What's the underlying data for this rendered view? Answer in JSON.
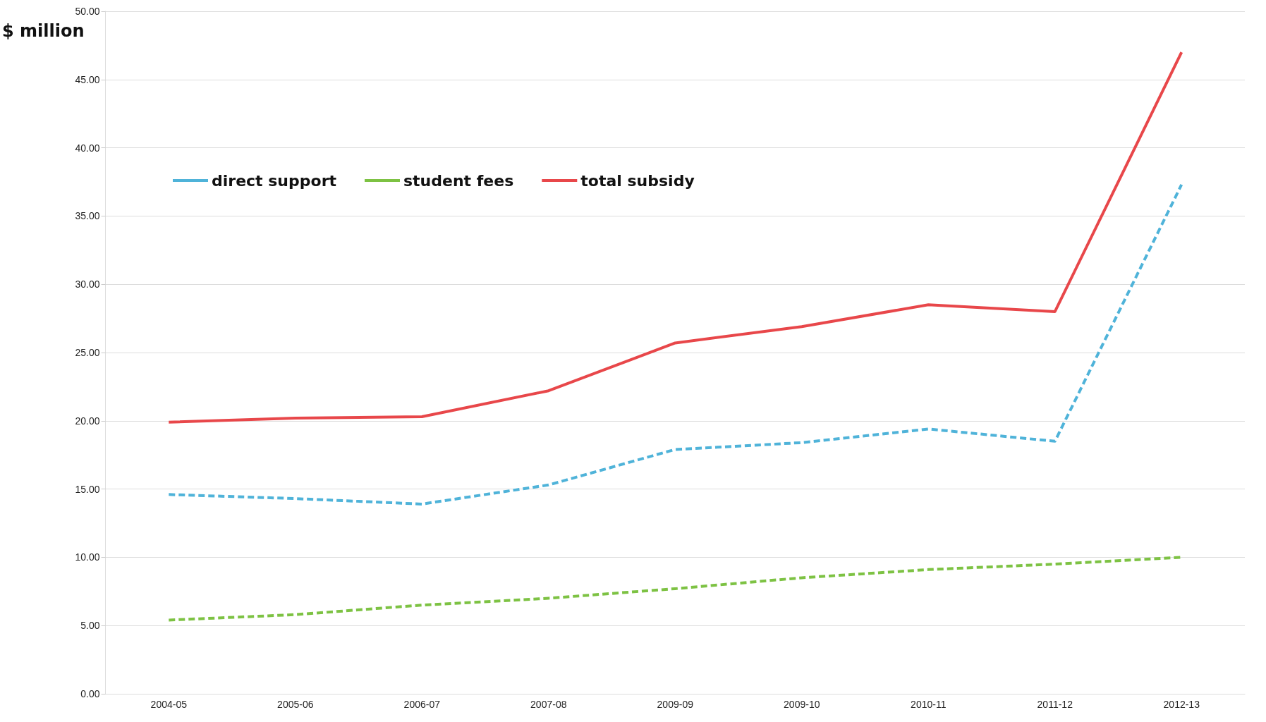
{
  "chart_data": {
    "type": "line",
    "ylabel": "$ million",
    "categories": [
      "2004-05",
      "2005-06",
      "2006-07",
      "2007-08",
      "2009-09",
      "2009-10",
      "2010-11",
      "2011-12",
      "2012-13"
    ],
    "series": [
      {
        "name": "direct support",
        "color": "#4fb3d9",
        "line_style": "dashed",
        "values": [
          14.6,
          14.3,
          13.9,
          15.3,
          17.9,
          18.4,
          19.4,
          18.5,
          37.3
        ]
      },
      {
        "name": "student fees",
        "color": "#7dc243",
        "line_style": "dashed",
        "values": [
          5.4,
          5.8,
          6.5,
          7.0,
          7.7,
          8.5,
          9.1,
          9.5,
          10.0
        ]
      },
      {
        "name": "total subsidy",
        "color": "#e8474a",
        "line_style": "solid",
        "values": [
          19.9,
          20.2,
          20.3,
          22.2,
          25.7,
          26.9,
          28.5,
          28.0,
          47.0
        ]
      }
    ],
    "ylim": [
      0,
      50
    ],
    "yticks": [
      {
        "value": 0,
        "label": "0.00"
      },
      {
        "value": 5,
        "label": "5.00"
      },
      {
        "value": 10,
        "label": "10.00"
      },
      {
        "value": 15,
        "label": "15.00"
      },
      {
        "value": 20,
        "label": "20.00"
      },
      {
        "value": 25,
        "label": "25.00"
      },
      {
        "value": 30,
        "label": "30.00"
      },
      {
        "value": 35,
        "label": "35.00"
      },
      {
        "value": 40,
        "label": "40.00"
      },
      {
        "value": 45,
        "label": "45.00"
      },
      {
        "value": 50,
        "label": "50.00"
      }
    ],
    "grid": "y",
    "legend": "top left",
    "marker": "none"
  }
}
